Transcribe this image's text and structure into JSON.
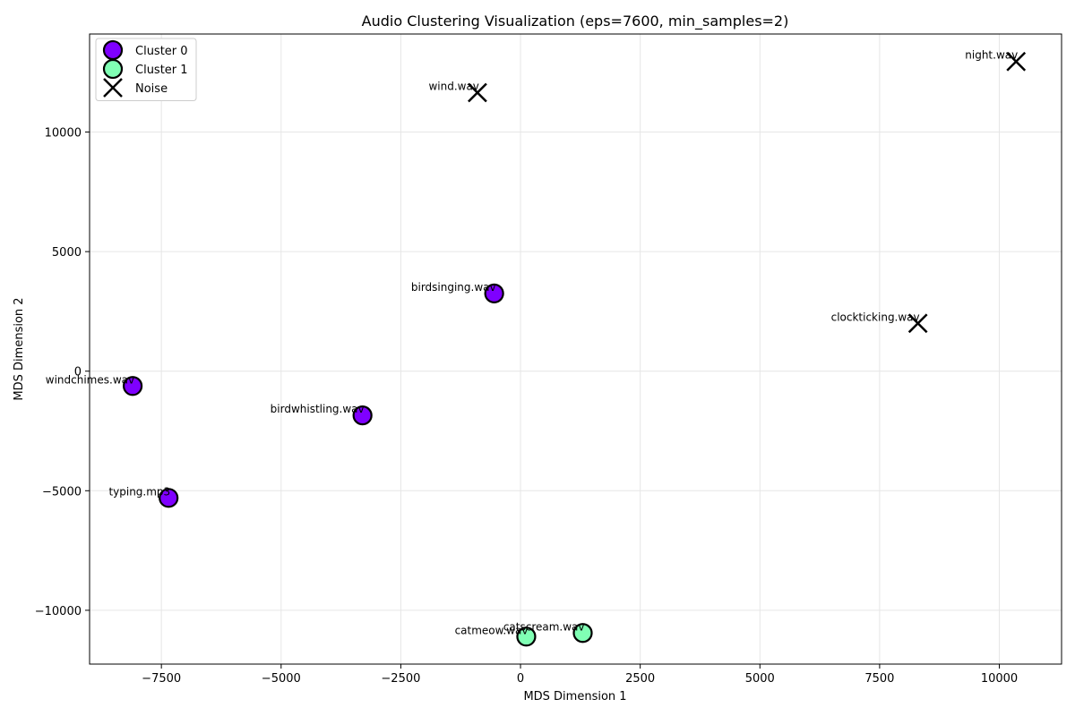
{
  "chart_data": {
    "type": "scatter",
    "title": "Audio Clustering Visualization (eps=7600, min_samples=2)",
    "xlabel": "MDS Dimension 1",
    "ylabel": "MDS Dimension 2",
    "xlim": [
      -9000,
      11300
    ],
    "ylim": [
      -12250,
      14100
    ],
    "xticks": [
      -7500,
      -5000,
      -2500,
      0,
      2500,
      5000,
      7500,
      10000
    ],
    "yticks": [
      -10000,
      -5000,
      0,
      5000,
      10000
    ],
    "xtick_labels": [
      "−7500",
      "−5000",
      "−2500",
      "0",
      "2500",
      "5000",
      "7500",
      "10000"
    ],
    "ytick_labels": [
      "−10000",
      "−5000",
      "0",
      "5000",
      "10000"
    ],
    "grid": true,
    "legend_position": "top-left",
    "series": [
      {
        "name": "Cluster 0",
        "marker": "circle",
        "color": "#7f00ff",
        "points": [
          {
            "label": "birdsinging.wav",
            "x": -550,
            "y": 3250
          },
          {
            "label": "windchimes.wav",
            "x": -8100,
            "y": -620
          },
          {
            "label": "birdwhistling.wav",
            "x": -3300,
            "y": -1850
          },
          {
            "label": "typing.mp3",
            "x": -7350,
            "y": -5300
          }
        ]
      },
      {
        "name": "Cluster 1",
        "marker": "circle",
        "color": "#80ffb4",
        "points": [
          {
            "label": "catmeow.wav",
            "x": 120,
            "y": -11100
          },
          {
            "label": "catscream.wav",
            "x": 1300,
            "y": -10950
          }
        ]
      },
      {
        "name": "Noise",
        "marker": "x",
        "color": "#000000",
        "points": [
          {
            "label": "wind.wav",
            "x": -900,
            "y": 11650
          },
          {
            "label": "night.wav",
            "x": 10350,
            "y": 12950
          },
          {
            "label": "clockticking.wav",
            "x": 8300,
            "y": 2000
          }
        ]
      }
    ]
  }
}
